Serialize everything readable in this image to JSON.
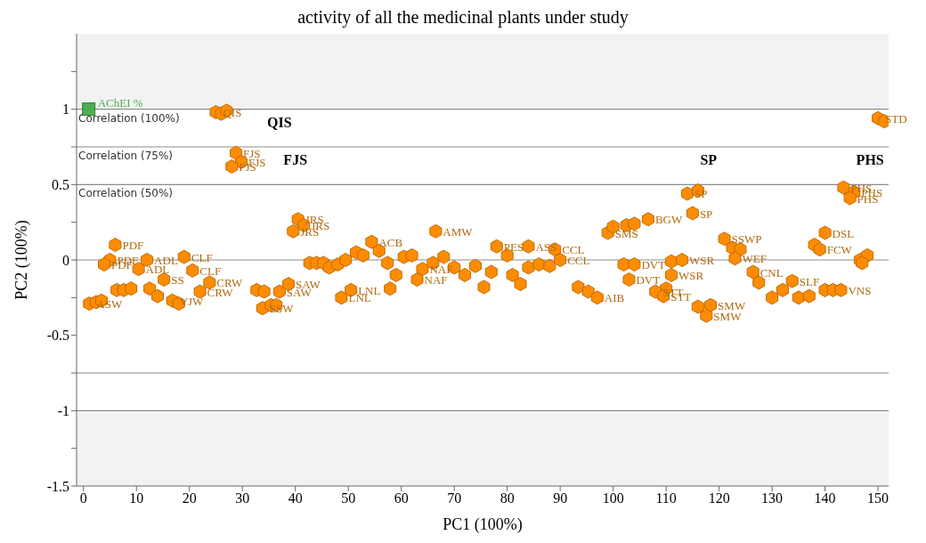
{
  "chart_data": {
    "type": "scatter",
    "title": "activity of all the medicinal plants under study",
    "xlabel": "PC1 (100%)",
    "ylabel": "PC2 (100%)",
    "xlim": [
      -1.3,
      152
    ],
    "xticks": [
      0,
      10,
      20,
      30,
      40,
      50,
      60,
      70,
      80,
      90,
      100,
      110,
      120,
      130,
      140,
      150
    ],
    "ylim": [
      -1.5,
      1.5
    ],
    "yticks": [
      -1.5,
      {
        "value": -1.25,
        "label": null
      },
      -1,
      {
        "value": -0.75,
        "label": null
      },
      -0.5,
      {
        "value": -0.25,
        "label": null
      },
      0,
      {
        "value": 0.25,
        "label": null
      },
      0.5,
      {
        "value": 0.75,
        "label": null
      },
      1,
      {
        "value": 1.25,
        "label": null
      }
    ],
    "grid": false,
    "ref_lines": [
      {
        "axis": "y",
        "value": 1,
        "label": "Correlation (100%)",
        "color": "#8c8c8c"
      },
      {
        "axis": "y",
        "value": 0.75,
        "label": "Correlation (75%)",
        "color": "#8c8c8c"
      },
      {
        "axis": "y",
        "value": 0.5,
        "label": "Correlation (50%)",
        "color": "#8c8c8c"
      },
      {
        "axis": "y",
        "value": 0,
        "color": "#8c8c8c"
      },
      {
        "axis": "y",
        "value": -0.75,
        "color": "#8c8c8c"
      },
      {
        "axis": "y",
        "value": -1,
        "color": "#8c8c8c"
      }
    ],
    "bands": [
      {
        "axis": "y",
        "from": 1,
        "to": 1.5,
        "color": "#f2f2f2"
      },
      {
        "axis": "y",
        "from": -1,
        "to": -1.5,
        "color": "#f2f2f2"
      }
    ],
    "annotations": [
      {
        "text": "QIS",
        "x": 37,
        "y": 1
      },
      {
        "text": "FJS",
        "x": 40,
        "y": 0.75
      },
      {
        "text": "SP",
        "x": 118,
        "y": 0.75
      },
      {
        "text": "PHS",
        "x": 148.5,
        "y": 0.75
      }
    ],
    "series": [
      {
        "name": "AChEI %",
        "color": "#4caf50",
        "marker": "square",
        "x": [
          1
        ],
        "values": [
          1
        ]
      },
      {
        "color": "#ff8c00",
        "x": [
          25,
          26,
          27,
          150,
          151.2,
          28.8,
          29.8,
          28,
          40.5,
          41.6,
          39.6,
          6,
          5,
          3.9,
          12,
          10.4,
          19,
          20.6,
          15.2,
          23.8,
          22,
          1.1,
          2.4,
          3.4,
          6.3,
          7.6,
          9,
          12.5,
          14,
          16.8,
          18,
          32.7,
          34.1,
          38.7,
          37,
          33.8,
          35.4,
          36.4,
          42.7,
          44,
          45.3,
          46.4,
          48,
          49.5,
          48.7,
          50.5,
          51.5,
          52.8,
          54.4,
          55.8,
          57.4,
          59,
          57.9,
          60.5,
          62,
          63,
          64,
          66,
          68,
          70,
          72,
          74,
          75.6,
          77,
          66.5,
          78,
          80,
          81,
          84,
          84,
          86,
          88,
          89,
          90,
          82.5,
          93.4,
          95.3,
          97,
          99,
          100,
          102.5,
          104,
          106.6,
          114,
          116,
          115,
          102,
          104,
          103,
          111,
          113,
          111,
          110,
          108,
          109.5,
          116,
          118.4,
          117.6,
          121,
          122.5,
          124,
          123,
          126.4,
          127.5,
          130,
          132,
          133.8,
          135,
          137,
          140,
          141.5,
          143,
          140,
          138,
          139,
          143.5,
          145.5,
          144.7,
          146.6,
          148,
          147
        ],
        "values": [
          0.98,
          0.97,
          0.99,
          0.94,
          0.92,
          0.71,
          0.65,
          0.62,
          0.27,
          0.23,
          0.19,
          0.1,
          0,
          -0.03,
          0,
          -0.06,
          0.02,
          -0.07,
          -0.13,
          -0.15,
          -0.21,
          -0.29,
          -0.28,
          -0.27,
          -0.2,
          -0.2,
          -0.19,
          -0.19,
          -0.24,
          -0.27,
          -0.29,
          -0.2,
          -0.21,
          -0.16,
          -0.21,
          -0.32,
          -0.3,
          -0.3,
          -0.02,
          -0.02,
          -0.02,
          -0.05,
          -0.03,
          0,
          -0.25,
          -0.2,
          0.05,
          0.03,
          0.12,
          0.06,
          -0.02,
          -0.1,
          -0.19,
          0.02,
          0.03,
          -0.13,
          -0.06,
          -0.02,
          0.02,
          -0.05,
          -0.1,
          -0.04,
          -0.18,
          -0.08,
          0.19,
          0.09,
          0.03,
          -0.1,
          0.09,
          -0.05,
          -0.03,
          -0.04,
          0.07,
          0,
          -0.16,
          -0.18,
          -0.21,
          -0.25,
          0.18,
          0.22,
          0.23,
          0.24,
          0.27,
          0.44,
          0.46,
          0.31,
          -0.03,
          -0.03,
          -0.13,
          -0.01,
          0,
          -0.1,
          -0.19,
          -0.21,
          -0.24,
          -0.31,
          -0.3,
          -0.37,
          0.14,
          0.08,
          0.07,
          0.01,
          -0.08,
          -0.15,
          -0.25,
          -0.2,
          -0.14,
          -0.25,
          -0.24,
          -0.2,
          -0.2,
          -0.2,
          0.18,
          0.1,
          0.07,
          0.48,
          0.45,
          0.41,
          0,
          0.03,
          -0.02
        ],
        "value_labels": [
          "QIS",
          null,
          null,
          "STD",
          null,
          "FJS",
          "FJS",
          "FJS",
          "JRS",
          "JRS",
          "JRS",
          "PDF",
          "PDF",
          "PDF",
          "ADL",
          "ADL",
          "CLF",
          "CLF",
          "SS",
          "CRW",
          "CRW",
          "ASW",
          null,
          null,
          null,
          null,
          null,
          null,
          null,
          "VJW",
          null,
          null,
          null,
          "SAW",
          "SAW",
          "SSW",
          null,
          null,
          null,
          null,
          null,
          null,
          null,
          null,
          "LNL",
          "LNL",
          null,
          null,
          "ACB",
          null,
          null,
          null,
          null,
          null,
          null,
          "NAF",
          "NAF",
          null,
          null,
          null,
          null,
          null,
          null,
          null,
          "AMW",
          "PES",
          null,
          null,
          "ASS",
          null,
          null,
          null,
          "CCL",
          "CCL",
          null,
          null,
          null,
          "AIB",
          "SMS",
          null,
          null,
          null,
          "BGW",
          "SP",
          null,
          "SP",
          null,
          "DVT",
          "DVT",
          null,
          "WSR",
          "WSR",
          null,
          "STT",
          "STT",
          null,
          "SMW",
          "SMW",
          "SSWP",
          null,
          null,
          "WEF",
          "CNL",
          null,
          null,
          null,
          "SLF",
          null,
          null,
          null,
          null,
          "VNS",
          "DSL",
          null,
          "FCW",
          "PHS",
          "PHS",
          "PHS",
          null,
          null,
          null
        ]
      }
    ]
  }
}
